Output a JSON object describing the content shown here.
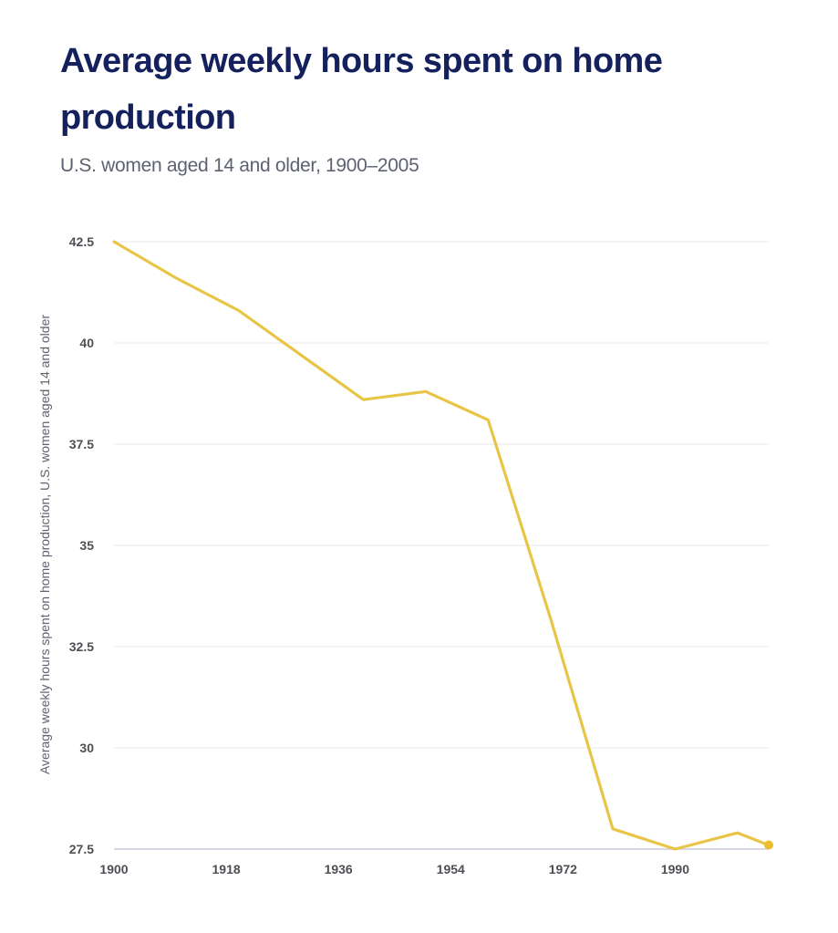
{
  "header": {
    "title": "Average weekly hours spent on home production",
    "subtitle": "U.S. women aged 14 and older, 1900–2005"
  },
  "colors": {
    "line": "#e8c547",
    "marker": "#eebd2f",
    "title": "#14215c",
    "gridline": "#e9e9ef",
    "baseline": "#c8cbdd"
  },
  "chart_data": {
    "type": "line",
    "title": "Average weekly hours spent on home production",
    "subtitle": "U.S. women aged 14 and older, 1900–2005",
    "xlabel": "",
    "ylabel": "Average weekly hours spent on home production, U.S. women aged 14 and older",
    "xlim": [
      1900,
      2005
    ],
    "ylim": [
      27.5,
      42.5
    ],
    "x_ticks": [
      1900,
      1918,
      1936,
      1954,
      1972,
      1990
    ],
    "x_tick_labels": [
      "1900",
      "1918",
      "1936",
      "1954",
      "1972",
      "1990"
    ],
    "y_ticks": [
      27.5,
      30,
      32.5,
      35,
      37.5,
      40,
      42.5
    ],
    "y_tick_labels": [
      "27.5",
      "30",
      "32.5",
      "35",
      "37.5",
      "40",
      "42.5"
    ],
    "grid": "horizontal",
    "legend": "none",
    "series": [
      {
        "name": "Average weekly hours spent on home production, U.S. women aged 14 and older",
        "x": [
          1900,
          1910,
          1920,
          1930,
          1940,
          1950,
          1960,
          1970,
          1980,
          1990,
          2000,
          2005
        ],
        "values": [
          42.5,
          41.6,
          40.8,
          39.7,
          38.6,
          38.8,
          38.1,
          33.2,
          28.0,
          27.5,
          27.9,
          27.6
        ],
        "end_marker": true
      }
    ]
  }
}
